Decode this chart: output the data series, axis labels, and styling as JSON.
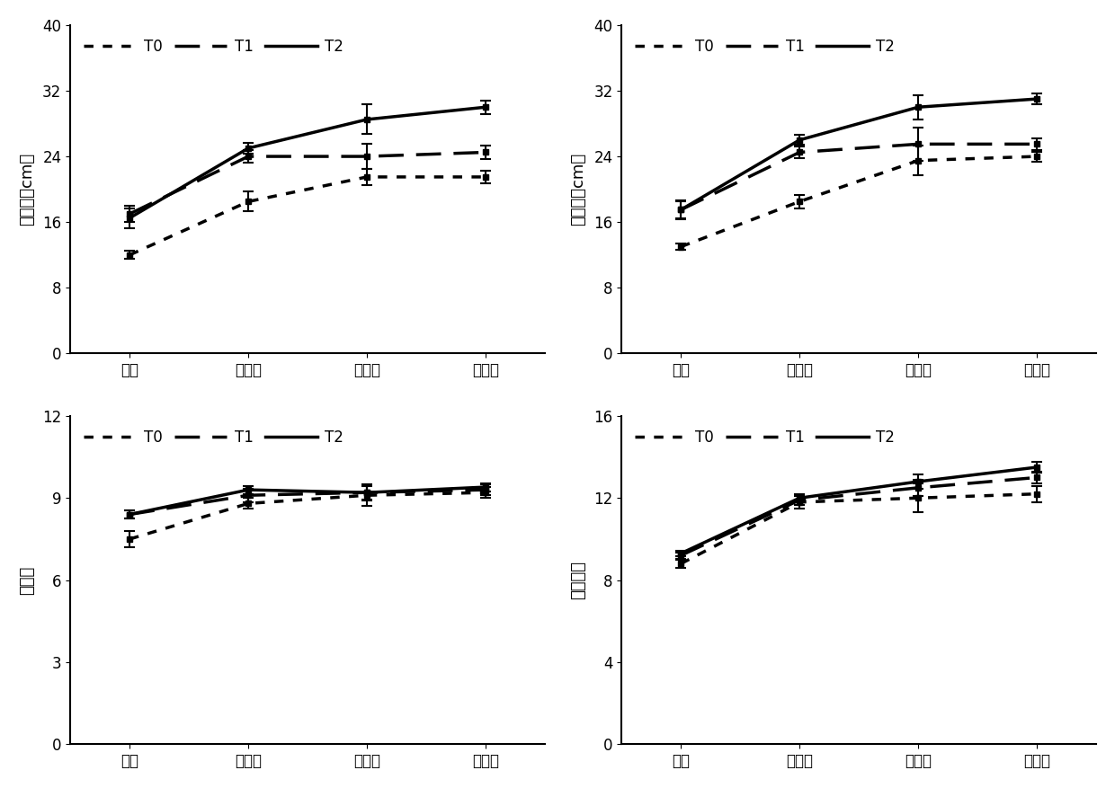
{
  "x_labels": [
    "苗期",
    "花针期",
    "荚果期",
    "饱果期"
  ],
  "plots": [
    {
      "ylabel": "主茎高（cm）",
      "ylim": [
        0,
        40
      ],
      "yticks": [
        0,
        8,
        16,
        24,
        32,
        40
      ],
      "T0": {
        "y": [
          12.0,
          18.5,
          21.5,
          21.5
        ],
        "err": [
          0.5,
          1.2,
          1.0,
          0.8
        ]
      },
      "T1": {
        "y": [
          17.0,
          24.0,
          24.0,
          24.5
        ],
        "err": [
          1.0,
          0.8,
          1.5,
          0.8
        ]
      },
      "T2": {
        "y": [
          16.5,
          25.0,
          28.5,
          30.0
        ],
        "err": [
          1.2,
          0.7,
          1.8,
          0.8
        ]
      }
    },
    {
      "ylabel": "侧枝长（cm）",
      "ylim": [
        0,
        40
      ],
      "yticks": [
        0,
        8,
        16,
        24,
        32,
        40
      ],
      "T0": {
        "y": [
          13.0,
          18.5,
          23.5,
          24.0
        ],
        "err": [
          0.4,
          0.8,
          1.8,
          0.6
        ]
      },
      "T1": {
        "y": [
          17.5,
          24.5,
          25.5,
          25.5
        ],
        "err": [
          1.2,
          0.7,
          2.0,
          0.7
        ]
      },
      "T2": {
        "y": [
          17.5,
          26.0,
          30.0,
          31.0
        ],
        "err": [
          1.0,
          0.6,
          1.5,
          0.7
        ]
      }
    },
    {
      "ylabel": "分枝数",
      "ylim": [
        0,
        12
      ],
      "yticks": [
        0,
        3,
        6,
        9,
        12
      ],
      "T0": {
        "y": [
          7.5,
          8.8,
          9.1,
          9.2
        ],
        "err": [
          0.3,
          0.2,
          0.4,
          0.2
        ]
      },
      "T1": {
        "y": [
          8.4,
          9.1,
          9.2,
          9.3
        ],
        "err": [
          0.15,
          0.25,
          0.3,
          0.2
        ]
      },
      "T2": {
        "y": [
          8.4,
          9.3,
          9.2,
          9.4
        ],
        "err": [
          0.15,
          0.15,
          0.25,
          0.15
        ]
      }
    },
    {
      "ylabel": "主茎节数",
      "ylim": [
        0,
        16
      ],
      "yticks": [
        0,
        4,
        8,
        12,
        16
      ],
      "T0": {
        "y": [
          8.8,
          11.8,
          12.0,
          12.2
        ],
        "err": [
          0.2,
          0.3,
          0.7,
          0.4
        ]
      },
      "T1": {
        "y": [
          9.2,
          11.9,
          12.5,
          13.0
        ],
        "err": [
          0.15,
          0.25,
          0.4,
          0.3
        ]
      },
      "T2": {
        "y": [
          9.3,
          12.0,
          12.8,
          13.5
        ],
        "err": [
          0.15,
          0.2,
          0.35,
          0.25
        ]
      }
    }
  ],
  "line_styles": {
    "T0": {
      "linestyle": "--",
      "dashes": [
        3,
        3
      ],
      "linewidth": 2.5,
      "color": "#000000",
      "marker": "s",
      "markersize": 4
    },
    "T1": {
      "linestyle": "--",
      "dashes": [
        8,
        4
      ],
      "linewidth": 2.5,
      "color": "#000000",
      "marker": "s",
      "markersize": 4
    },
    "T2": {
      "linestyle": "-",
      "dashes": [],
      "linewidth": 2.5,
      "color": "#000000",
      "marker": "s",
      "markersize": 4
    }
  },
  "legend_labels": [
    "T0",
    "T1",
    "T2"
  ],
  "background_color": "#ffffff",
  "font_size": 12,
  "label_fontsize": 13,
  "tick_fontsize": 12
}
